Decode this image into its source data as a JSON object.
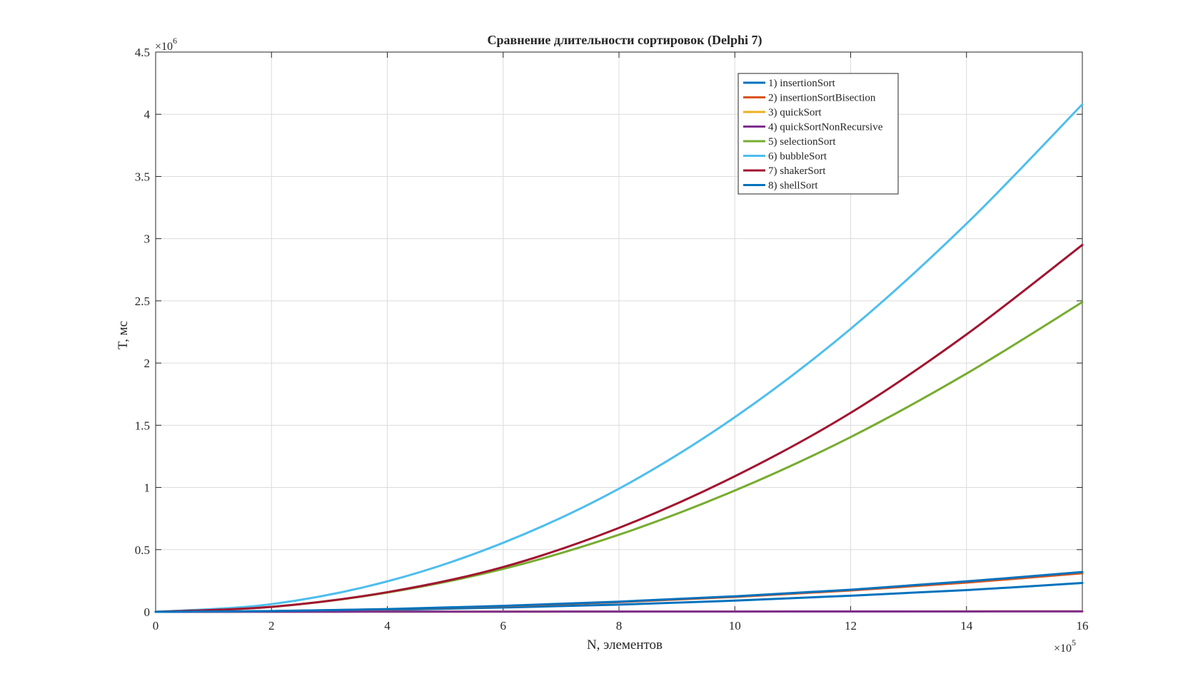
{
  "chart_data": {
    "type": "line",
    "title": "Сравнение длительности сортировок (Delphi 7)",
    "xlabel": "N, элементов",
    "ylabel": "T, мс",
    "x_exponent_label": "×10",
    "x_exponent": "5",
    "y_exponent_label": "×10",
    "y_exponent": "6",
    "xlim": [
      0,
      16
    ],
    "ylim": [
      0,
      4.5
    ],
    "xticks": [
      0,
      2,
      4,
      6,
      8,
      10,
      12,
      14,
      16
    ],
    "xtick_labels": [
      "0",
      "2",
      "4",
      "6",
      "8",
      "10",
      "12",
      "14",
      "16"
    ],
    "yticks": [
      0,
      0.5,
      1,
      1.5,
      2,
      2.5,
      3,
      3.5,
      4,
      4.5
    ],
    "ytick_labels": [
      "0",
      "0.5",
      "1",
      "1.5",
      "2",
      "2.5",
      "3",
      "3.5",
      "4",
      "4.5"
    ],
    "grid": true,
    "legend_position": "top-right",
    "x": [
      0,
      2,
      4,
      6,
      8,
      10,
      12,
      14,
      16
    ],
    "series": [
      {
        "name": "1) insertionSort",
        "color": "#0072BD",
        "values": [
          0,
          0.0045,
          0.0155,
          0.035,
          0.058,
          0.09,
          0.13,
          0.175,
          0.232
        ]
      },
      {
        "name": "2) insertionSortBisection",
        "color": "#D95319",
        "values": [
          0,
          0.006,
          0.021,
          0.045,
          0.078,
          0.12,
          0.172,
          0.235,
          0.31
        ]
      },
      {
        "name": "3) quickSort",
        "color": "#EDB120",
        "values": [
          0,
          0.001,
          0.0015,
          0.002,
          0.0025,
          0.003,
          0.0035,
          0.004,
          0.0045
        ]
      },
      {
        "name": "4) quickSortNonRecursive",
        "color": "#7E2F8E",
        "values": [
          0,
          0.0008,
          0.0012,
          0.0016,
          0.002,
          0.0024,
          0.0028,
          0.0032,
          0.0036
        ]
      },
      {
        "name": "5) selectionSort",
        "color": "#77AC30",
        "values": [
          0,
          0.04,
          0.155,
          0.345,
          0.62,
          0.975,
          1.405,
          1.915,
          2.49
        ]
      },
      {
        "name": "6) bubbleSort",
        "color": "#4DBEEE",
        "values": [
          0,
          0.062,
          0.245,
          0.555,
          0.99,
          1.565,
          2.275,
          3.12,
          4.08
        ]
      },
      {
        "name": "7) shakerSort",
        "color": "#A2142F",
        "values": [
          0,
          0.04,
          0.158,
          0.36,
          0.675,
          1.09,
          1.6,
          2.23,
          2.95
        ]
      },
      {
        "name": "8) shellSort",
        "color": "#0072BD",
        "values": [
          0,
          0.0065,
          0.022,
          0.048,
          0.082,
          0.125,
          0.178,
          0.245,
          0.32
        ]
      }
    ]
  }
}
